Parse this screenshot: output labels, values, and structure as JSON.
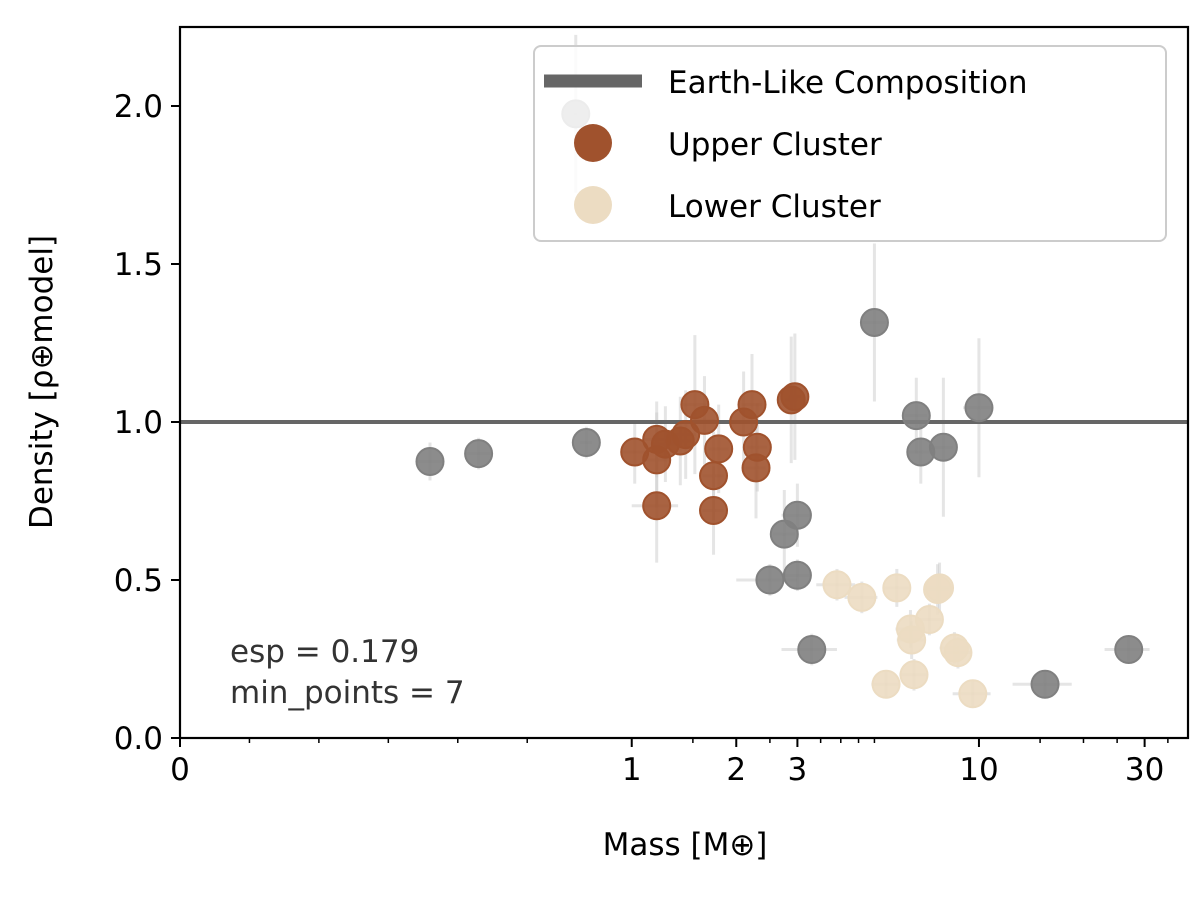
{
  "chart_data": {
    "type": "scatter",
    "xlabel": "Mass [M⊕]",
    "ylabel": "Density [ρ⊕model]",
    "x_scale": "symlog",
    "xlim": [
      0,
      40
    ],
    "ylim": [
      0,
      2.25
    ],
    "x_ticks": [
      0,
      1,
      2,
      3,
      10,
      30
    ],
    "x_tick_labels": [
      "0",
      "1",
      "2",
      "3",
      "10",
      "30"
    ],
    "y_ticks": [
      0.0,
      0.5,
      1.0,
      1.5,
      2.0
    ],
    "y_tick_labels": [
      "0.0",
      "0.5",
      "1.0",
      "1.5",
      "2.0"
    ],
    "grid": false,
    "legend_position": "top-right",
    "reference_line": {
      "name": "Earth-Like Composition",
      "y": 1.0,
      "color": "#666666"
    },
    "annotations": [
      "esp = 0.179",
      "min_points = 7"
    ],
    "series": [
      {
        "name": "Upper Cluster",
        "color": "#a0522d",
        "points": [
          {
            "x": 1.02,
            "y": 0.905,
            "xerr": 0.09,
            "yerr": 0.1
          },
          {
            "x": 1.18,
            "y": 0.735,
            "xerr": 0.18,
            "yerr": 0.18
          },
          {
            "x": 1.18,
            "y": 0.88,
            "xerr": 0.1,
            "yerr": 0.15
          },
          {
            "x": 1.18,
            "y": 0.945,
            "xerr": 0.1,
            "yerr": 0.12
          },
          {
            "x": 1.25,
            "y": 0.93,
            "xerr": 0.1,
            "yerr": 0.12
          },
          {
            "x": 1.38,
            "y": 0.94,
            "xerr": 0.1,
            "yerr": 0.14
          },
          {
            "x": 1.43,
            "y": 0.96,
            "xerr": 0.1,
            "yerr": 0.14
          },
          {
            "x": 1.52,
            "y": 1.055,
            "xerr": 0.12,
            "yerr": 0.22
          },
          {
            "x": 1.62,
            "y": 1.005,
            "xerr": 0.12,
            "yerr": 0.14
          },
          {
            "x": 1.72,
            "y": 0.83,
            "xerr": 0.12,
            "yerr": 0.14
          },
          {
            "x": 1.72,
            "y": 0.72,
            "xerr": 0.12,
            "yerr": 0.14
          },
          {
            "x": 1.78,
            "y": 0.915,
            "xerr": 0.12,
            "yerr": 0.14
          },
          {
            "x": 2.1,
            "y": 1.0,
            "xerr": 0.15,
            "yerr": 0.16
          },
          {
            "x": 2.22,
            "y": 1.055,
            "xerr": 0.15,
            "yerr": 0.16
          },
          {
            "x": 2.28,
            "y": 0.855,
            "xerr": 0.15,
            "yerr": 0.16
          },
          {
            "x": 2.3,
            "y": 0.92,
            "xerr": 0.15,
            "yerr": 0.14
          },
          {
            "x": 2.88,
            "y": 1.07,
            "xerr": 0.12,
            "yerr": 0.2
          },
          {
            "x": 2.95,
            "y": 1.08,
            "xerr": 0.12,
            "yerr": 0.2
          }
        ]
      },
      {
        "name": "Lower Cluster",
        "color": "#ecdcc2",
        "points": [
          {
            "x": 3.9,
            "y": 0.485,
            "xerr": 0.5,
            "yerr": 0.05
          },
          {
            "x": 4.6,
            "y": 0.445,
            "xerr": 0.5,
            "yerr": 0.05
          },
          {
            "x": 5.4,
            "y": 0.17,
            "xerr": 0.5,
            "yerr": 0.04
          },
          {
            "x": 5.8,
            "y": 0.475,
            "xerr": 0.5,
            "yerr": 0.06
          },
          {
            "x": 6.35,
            "y": 0.345,
            "xerr": 0.6,
            "yerr": 0.06
          },
          {
            "x": 6.4,
            "y": 0.31,
            "xerr": 0.6,
            "yerr": 0.06
          },
          {
            "x": 6.5,
            "y": 0.2,
            "xerr": 0.6,
            "yerr": 0.05
          },
          {
            "x": 7.2,
            "y": 0.375,
            "xerr": 0.6,
            "yerr": 0.05
          },
          {
            "x": 7.6,
            "y": 0.47,
            "xerr": 0.6,
            "yerr": 0.08
          },
          {
            "x": 7.7,
            "y": 0.475,
            "xerr": 0.6,
            "yerr": 0.08
          },
          {
            "x": 8.5,
            "y": 0.285,
            "xerr": 0.8,
            "yerr": 0.05
          },
          {
            "x": 8.7,
            "y": 0.27,
            "xerr": 0.8,
            "yerr": 0.05
          },
          {
            "x": 9.6,
            "y": 0.14,
            "xerr": 1.2,
            "yerr": 0.04
          }
        ]
      },
      {
        "name": "",
        "color": "#808080",
        "points": [
          {
            "x": 0.36,
            "y": 0.875,
            "xerr": 0.02,
            "yerr": 0.06
          },
          {
            "x": 0.43,
            "y": 0.9,
            "xerr": 0.02,
            "yerr": 0.05
          },
          {
            "x": 0.69,
            "y": 1.975,
            "xerr": 0.02,
            "yerr": 0.25
          },
          {
            "x": 0.74,
            "y": 0.935,
            "xerr": 0.03,
            "yerr": 0.05
          },
          {
            "x": 2.5,
            "y": 0.5,
            "xerr": 0.5,
            "yerr": 0.05
          },
          {
            "x": 2.75,
            "y": 0.645,
            "xerr": 0.2,
            "yerr": 0.14
          },
          {
            "x": 3.0,
            "y": 0.515,
            "xerr": 0.3,
            "yerr": 0.05
          },
          {
            "x": 3.0,
            "y": 0.705,
            "xerr": 0.3,
            "yerr": 0.1
          },
          {
            "x": 3.3,
            "y": 0.28,
            "xerr": 0.6,
            "yerr": 0.05
          },
          {
            "x": 5.0,
            "y": 1.315,
            "xerr": 0.4,
            "yerr": 0.25
          },
          {
            "x": 6.6,
            "y": 1.02,
            "xerr": 0.5,
            "yerr": 0.12
          },
          {
            "x": 6.8,
            "y": 0.905,
            "xerr": 0.5,
            "yerr": 0.1
          },
          {
            "x": 7.9,
            "y": 0.92,
            "xerr": 0.5,
            "yerr": 0.22
          },
          {
            "x": 10.0,
            "y": 1.045,
            "xerr": 1.0,
            "yerr": 0.22
          },
          {
            "x": 15.5,
            "y": 0.17,
            "xerr": 3.0,
            "yerr": 0.04
          },
          {
            "x": 27.0,
            "y": 0.28,
            "xerr": 4.0,
            "yerr": 0.04
          }
        ]
      }
    ]
  }
}
